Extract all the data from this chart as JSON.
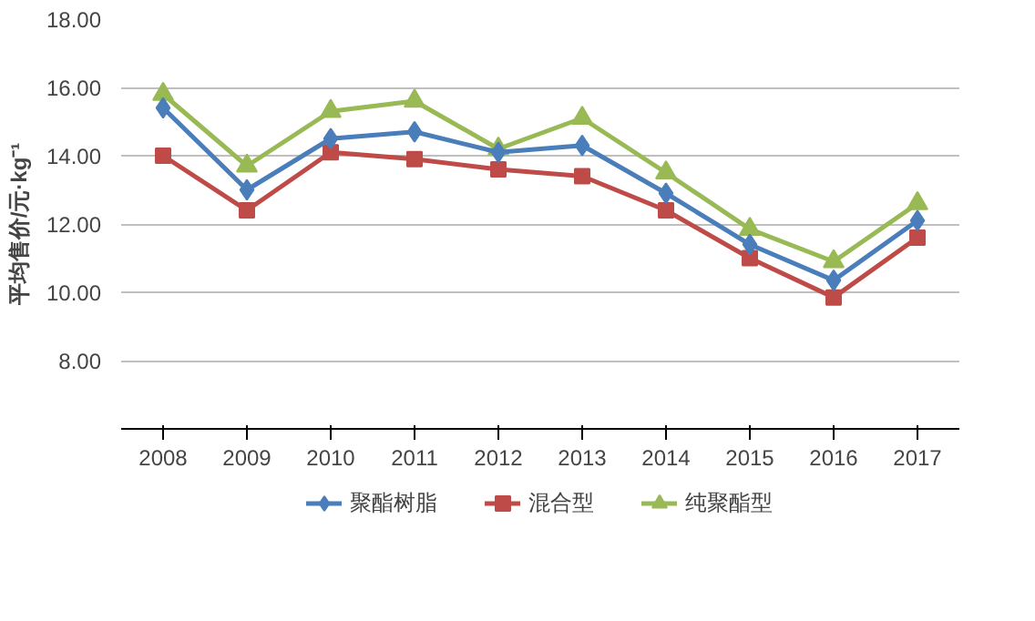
{
  "chart_data": {
    "type": "line",
    "ylabel": "平均售价/元·kg⁻¹",
    "categories": [
      "2008",
      "2009",
      "2010",
      "2011",
      "2012",
      "2013",
      "2014",
      "2015",
      "2016",
      "2017"
    ],
    "ylim": [
      6,
      18
    ],
    "yticks": [
      {
        "value": 6,
        "label": null
      },
      {
        "value": 8,
        "label": "8.00"
      },
      {
        "value": 10,
        "label": "10.00"
      },
      {
        "value": 12,
        "label": "12.00"
      },
      {
        "value": 14,
        "label": "14.00"
      },
      {
        "value": 16,
        "label": "16.00"
      },
      {
        "value": 18,
        "label": "18.00"
      }
    ],
    "grid": "y",
    "legend": "bottom",
    "line_style": "solid",
    "series": [
      {
        "name": "聚酯树脂",
        "color": "#4a7ebb",
        "marker": "diamond",
        "values": [
          15.4,
          13.0,
          14.5,
          14.7,
          14.1,
          14.3,
          12.9,
          11.4,
          10.35,
          12.1
        ]
      },
      {
        "name": "混合型",
        "color": "#be4b48",
        "marker": "square",
        "values": [
          14.0,
          12.4,
          14.1,
          13.9,
          13.6,
          13.4,
          12.4,
          11.0,
          9.85,
          11.6
        ]
      },
      {
        "name": "纯聚酯型",
        "color": "#98b954",
        "marker": "triangle",
        "values": [
          15.8,
          13.7,
          15.3,
          15.6,
          14.2,
          15.1,
          13.5,
          11.85,
          10.9,
          12.6
        ]
      }
    ]
  }
}
